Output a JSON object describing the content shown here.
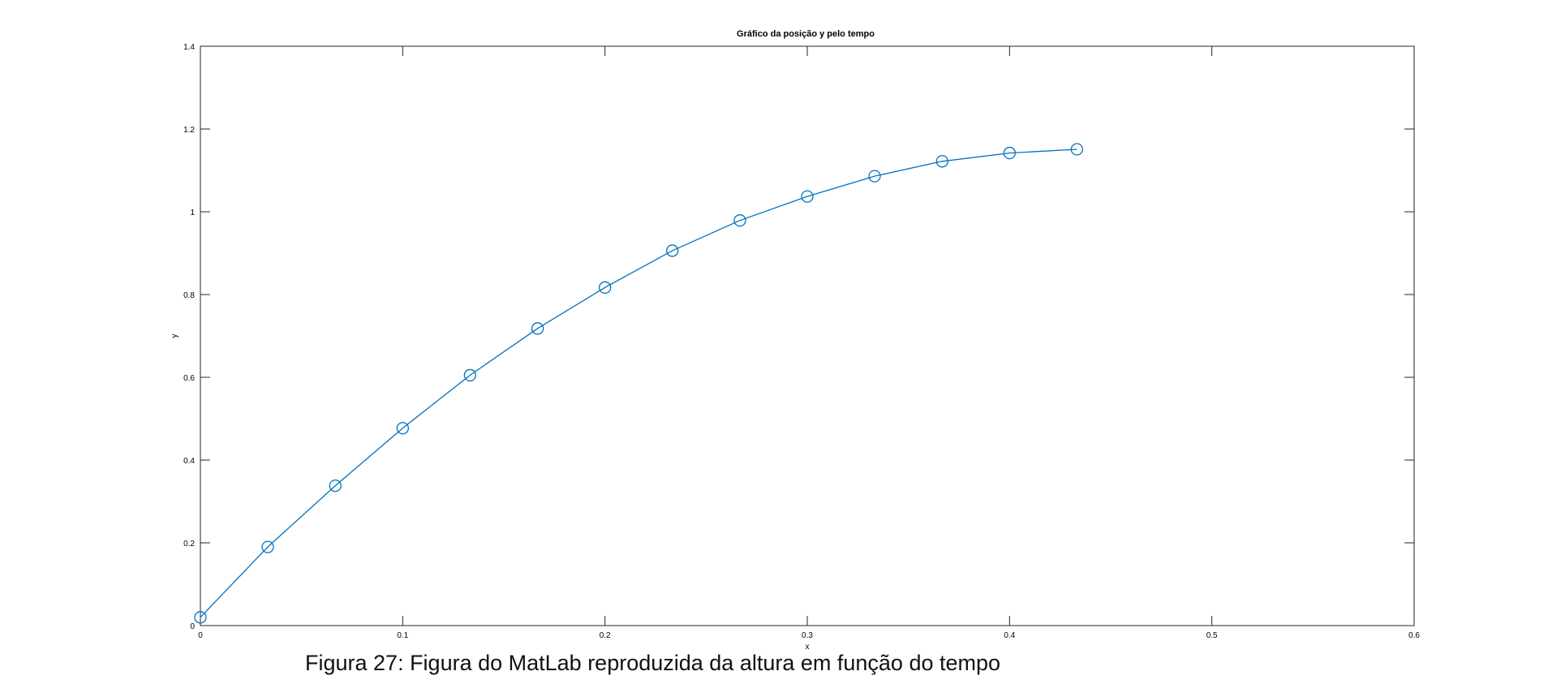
{
  "caption": "Figura 27: Figura do MatLab reproduzida da altura em função do tempo",
  "chart_data": {
    "type": "line",
    "title": "Gráfico da posição y pelo tempo",
    "xlabel": "x",
    "ylabel": "y",
    "xlim": [
      0,
      0.6
    ],
    "ylim": [
      0,
      1.4
    ],
    "x_ticks": [
      0,
      0.1,
      0.2,
      0.3,
      0.4,
      0.5,
      0.6
    ],
    "x_tick_labels": [
      "0",
      "0.1",
      "0.2",
      "0.3",
      "0.4",
      "0.5",
      "0.6"
    ],
    "y_ticks": [
      0,
      0.2,
      0.4,
      0.6,
      0.8,
      1,
      1.2,
      1.4
    ],
    "y_tick_labels": [
      "0",
      "0.2",
      "0.4",
      "0.6",
      "0.8",
      "1",
      "1.2",
      "1.4"
    ],
    "grid": false,
    "marker": "circle",
    "line_color": "#0072BD",
    "series": [
      {
        "x": [
          0,
          0.0333,
          0.0667,
          0.1,
          0.1333,
          0.1667,
          0.2,
          0.2333,
          0.2667,
          0.3,
          0.3333,
          0.3667,
          0.4,
          0.4333
        ],
        "y": [
          0.02,
          0.19,
          0.338,
          0.477,
          0.605,
          0.718,
          0.817,
          0.906,
          0.979,
          1.037,
          1.086,
          1.122,
          1.142,
          1.151
        ]
      }
    ]
  }
}
